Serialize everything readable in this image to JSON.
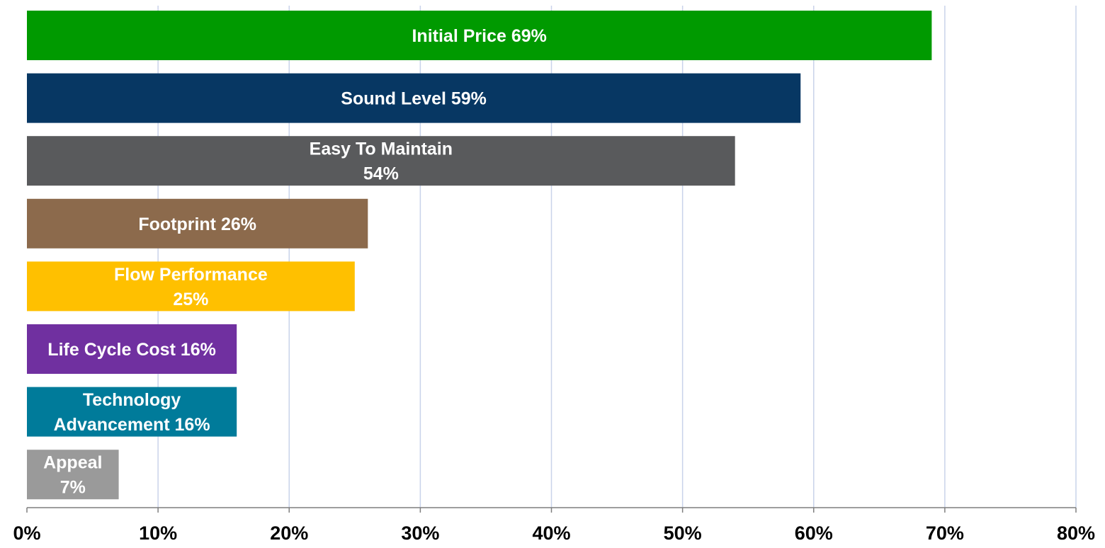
{
  "chart_data": {
    "type": "bar",
    "orientation": "horizontal",
    "title": "",
    "xlabel": "",
    "ylabel": "",
    "xlim": [
      0,
      80
    ],
    "x_ticks": [
      0,
      10,
      20,
      30,
      40,
      50,
      60,
      70,
      80
    ],
    "x_tick_labels": [
      "0%",
      "10%",
      "20%",
      "30%",
      "40%",
      "50%",
      "60%",
      "70%",
      "80%"
    ],
    "grid": "vertical",
    "legend": "none",
    "bars": [
      {
        "category": "Initial Price",
        "value": 69,
        "label_lines": [
          "Initial Price 69%"
        ],
        "color": "#009A00"
      },
      {
        "category": "Sound Level",
        "value": 59,
        "label_lines": [
          "Sound Level 59%"
        ],
        "color": "#073763"
      },
      {
        "category": "Easy To Maintain",
        "value": 54,
        "label_lines": [
          "Easy To Maintain",
          "54%"
        ],
        "color": "#595A5C"
      },
      {
        "category": "Footprint",
        "value": 26,
        "label_lines": [
          "Footprint 26%"
        ],
        "color": "#8C6A4C"
      },
      {
        "category": "Flow Performance",
        "value": 25,
        "label_lines": [
          "Flow Performance",
          "25%"
        ],
        "color": "#FFC000"
      },
      {
        "category": "Life Cycle Cost",
        "value": 16,
        "label_lines": [
          "Life Cycle Cost 16%"
        ],
        "color": "#7030A0"
      },
      {
        "category": "Technology Advancement",
        "value": 16,
        "label_lines": [
          "Technology",
          "Advancement 16%"
        ],
        "color": "#007B9A"
      },
      {
        "category": "Appeal",
        "value": 7,
        "label_lines": [
          "Appeal",
          "7%"
        ],
        "color": "#9A9A9A"
      }
    ],
    "gridline_color": "#C9D3EA",
    "axis_color": "#7F7F7F",
    "label_color": "#FFFFFF",
    "tick_label_color": "#000000"
  }
}
